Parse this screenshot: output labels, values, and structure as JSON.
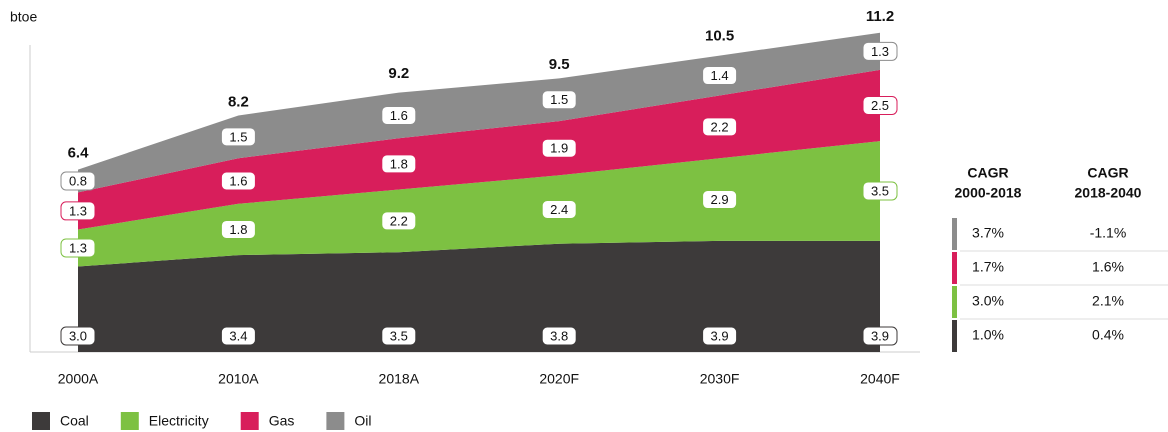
{
  "chart_data": {
    "type": "stacked-area",
    "y_label": "btoe",
    "categories": [
      "2000A",
      "2010A",
      "2018A",
      "2020F",
      "2030F",
      "2040F"
    ],
    "series": [
      {
        "name": "Coal",
        "color": "#3d3a3a",
        "values": [
          3.0,
          3.4,
          3.5,
          3.8,
          3.9,
          3.9
        ],
        "value_labels": [
          "3.0",
          "3.4",
          "3.5",
          "3.8",
          "3.9",
          "3.9"
        ]
      },
      {
        "name": "Electricity",
        "color": "#7dc142",
        "values": [
          1.3,
          1.8,
          2.2,
          2.4,
          2.9,
          3.5
        ]
      },
      {
        "name": "Gas",
        "color": "#d81e5b",
        "values": [
          1.3,
          1.6,
          1.8,
          1.9,
          2.2,
          2.5
        ]
      },
      {
        "name": "Oil",
        "color": "#8c8c8c",
        "values": [
          0.8,
          1.5,
          1.6,
          1.5,
          1.4,
          1.3
        ]
      }
    ],
    "totals": [
      6.4,
      8.2,
      9.2,
      9.5,
      10.5,
      11.2
    ],
    "ylim": [
      0,
      12
    ],
    "cagr_table": {
      "columns": [
        [
          "CAGR",
          "2000-2018"
        ],
        [
          "CAGR",
          "2018-2040"
        ]
      ],
      "rows": [
        {
          "color": "#8c8c8c",
          "cells": [
            "3.7%",
            "-1.1%"
          ]
        },
        {
          "color": "#d81e5b",
          "cells": [
            "1.7%",
            "1.6%"
          ]
        },
        {
          "color": "#7dc142",
          "cells": [
            "3.0%",
            "2.1%"
          ]
        },
        {
          "color": "#3d3a3a",
          "cells": [
            "1.0%",
            "0.4%"
          ]
        }
      ]
    }
  }
}
